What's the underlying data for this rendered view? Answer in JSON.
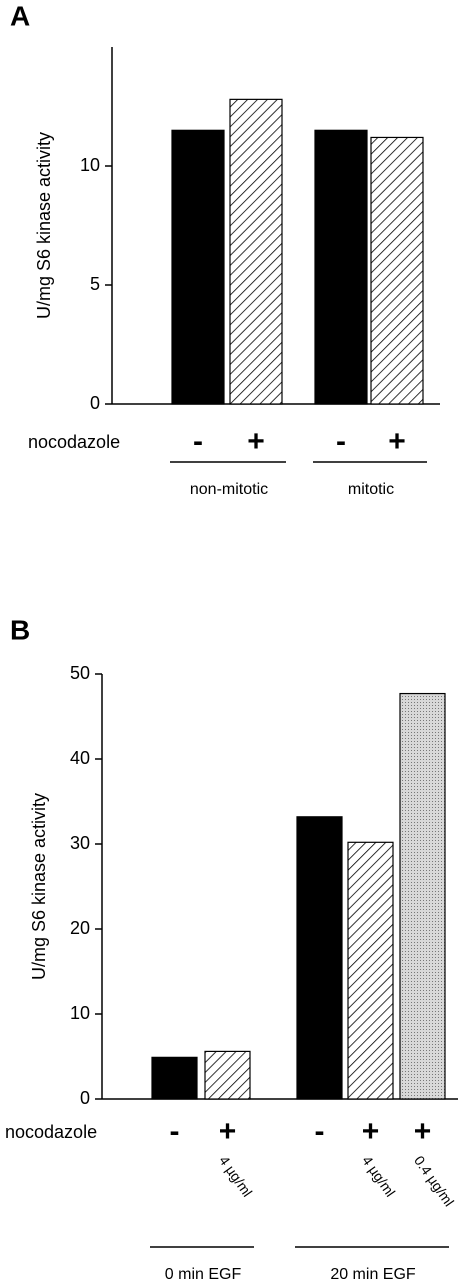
{
  "chart_data": [
    {
      "type": "bar",
      "title": "A",
      "y_label": "U/mg S6 kinase activity",
      "row_label": "nocodazole",
      "ylim": [
        0,
        15
      ],
      "yticks": [
        0,
        5,
        10
      ],
      "groups": [
        {
          "name": "non-mitotic",
          "categories": [
            "-",
            "+"
          ],
          "values": [
            11.5,
            12.8
          ],
          "patterns": [
            "solid",
            "hatch"
          ],
          "doses": [
            null,
            null
          ]
        },
        {
          "name": "mitotic",
          "categories": [
            "-",
            "+"
          ],
          "values": [
            11.5,
            11.2
          ],
          "patterns": [
            "solid",
            "hatch"
          ],
          "doses": [
            null,
            null
          ]
        }
      ]
    },
    {
      "type": "bar",
      "title": "B",
      "y_label": "U/mg S6 kinase activity",
      "row_label": "nocodazole",
      "ylim": [
        0,
        50
      ],
      "yticks": [
        0,
        10,
        20,
        30,
        40,
        50
      ],
      "groups": [
        {
          "name": "0 min EGF",
          "categories": [
            "-",
            "+"
          ],
          "values": [
            4.9,
            5.6
          ],
          "patterns": [
            "solid",
            "hatch"
          ],
          "doses": [
            null,
            "4 µg/ml"
          ]
        },
        {
          "name": "20 min EGF",
          "categories": [
            "-",
            "+",
            "+"
          ],
          "values": [
            33.2,
            30.2,
            47.7
          ],
          "patterns": [
            "solid",
            "hatch",
            "dots"
          ],
          "doses": [
            null,
            "4 µg/ml",
            "0.4 µg/ml"
          ]
        }
      ]
    }
  ]
}
